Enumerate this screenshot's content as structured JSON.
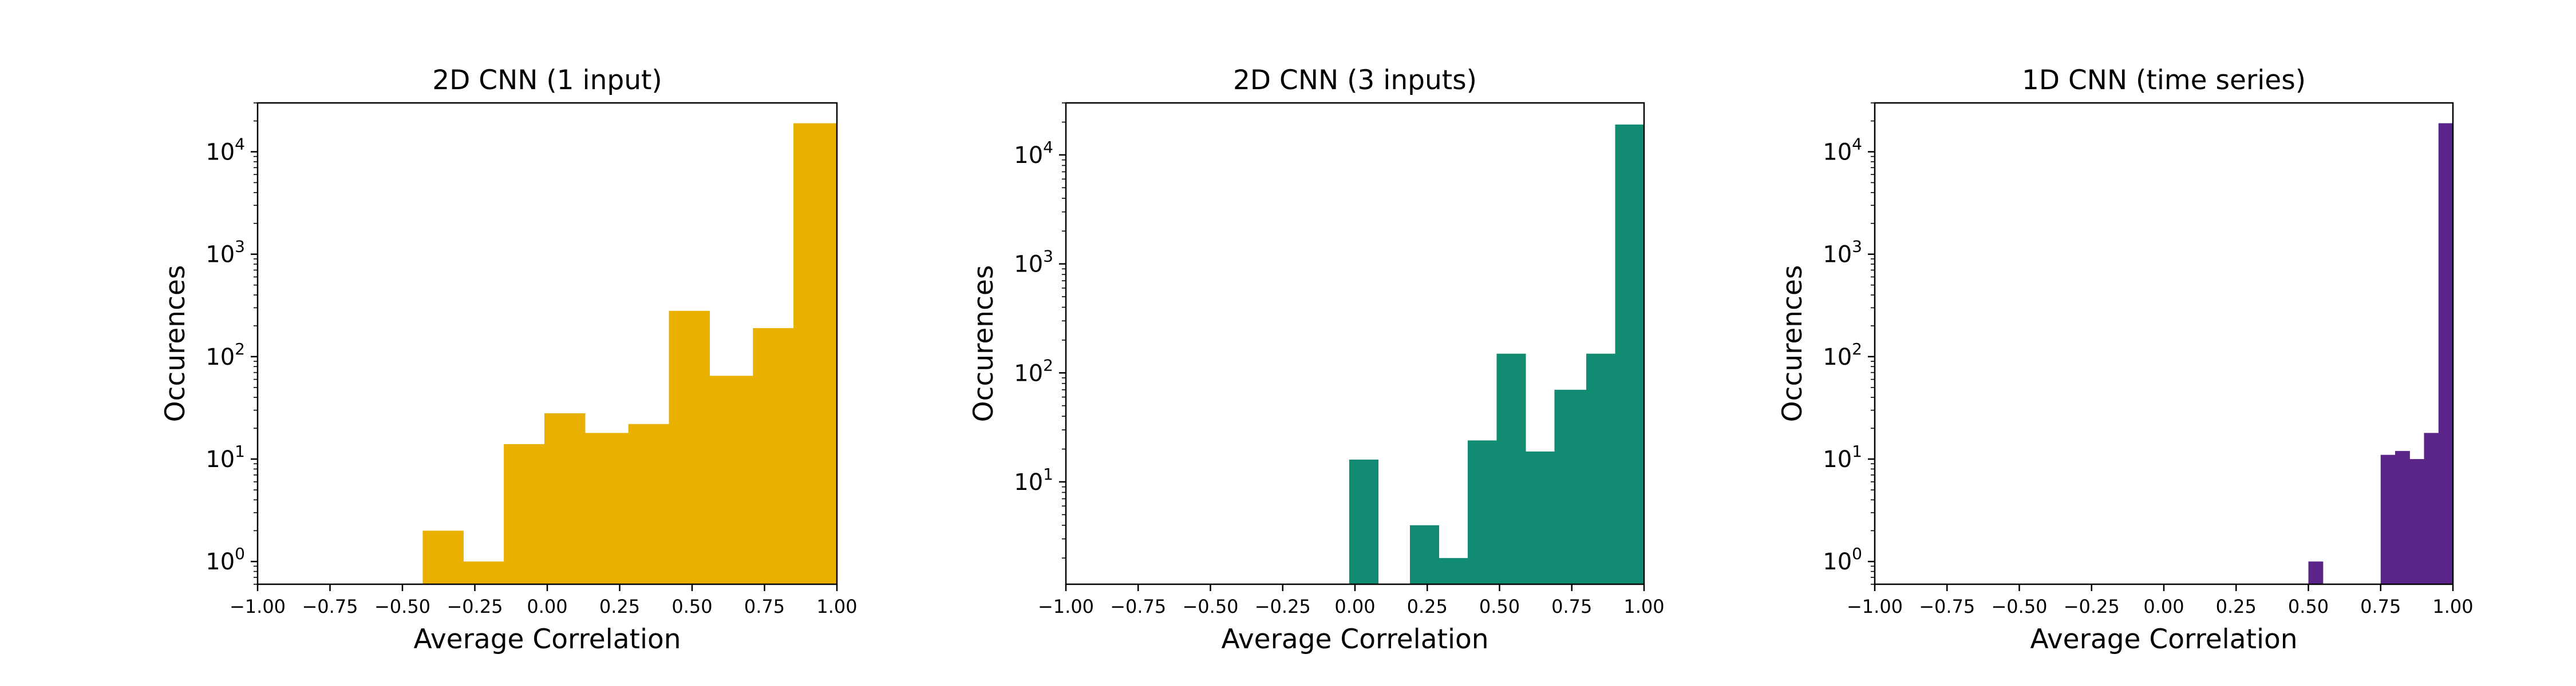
{
  "chart_data": [
    {
      "type": "histogram",
      "title": "2D CNN (1 input)",
      "xlabel": "Average Correlation",
      "ylabel": "Occurences",
      "yscale": "log",
      "xlim": [
        -1.0,
        1.0
      ],
      "ylim": [
        0.6,
        30000
      ],
      "x_ticks": [
        "−1.00",
        "−0.75",
        "−0.50",
        "−0.25",
        "0.00",
        "0.25",
        "0.50",
        "0.75",
        "1.00"
      ],
      "x_tick_values": [
        -1.0,
        -0.75,
        -0.5,
        -0.25,
        0.0,
        0.25,
        0.5,
        0.75,
        1.0
      ],
      "y_ticks": [
        {
          "base": "10",
          "exp": "0"
        },
        {
          "base": "10",
          "exp": "1"
        },
        {
          "base": "10",
          "exp": "2"
        },
        {
          "base": "10",
          "exp": "3"
        },
        {
          "base": "10",
          "exp": "4"
        }
      ],
      "y_tick_values": [
        1,
        10,
        100,
        1000,
        10000
      ],
      "color": "#e9b000",
      "bins": [
        {
          "x0": -0.43,
          "x1": -0.29,
          "count": 2
        },
        {
          "x0": -0.29,
          "x1": -0.15,
          "count": 1
        },
        {
          "x0": -0.15,
          "x1": -0.01,
          "count": 14
        },
        {
          "x0": -0.01,
          "x1": 0.13,
          "count": 28
        },
        {
          "x0": 0.13,
          "x1": 0.28,
          "count": 18
        },
        {
          "x0": 0.28,
          "x1": 0.42,
          "count": 22
        },
        {
          "x0": 0.42,
          "x1": 0.56,
          "count": 280
        },
        {
          "x0": 0.56,
          "x1": 0.71,
          "count": 65
        },
        {
          "x0": 0.71,
          "x1": 0.85,
          "count": 190
        },
        {
          "x0": 0.85,
          "x1": 1.0,
          "count": 19000
        }
      ]
    },
    {
      "type": "histogram",
      "title": "2D CNN (3 inputs)",
      "xlabel": "Average Correlation",
      "ylabel": "Occurences",
      "yscale": "log",
      "xlim": [
        -1.0,
        1.0
      ],
      "ylim": [
        1.15,
        30000
      ],
      "x_ticks": [
        "−1.00",
        "−0.75",
        "−0.50",
        "−0.25",
        "0.00",
        "0.25",
        "0.50",
        "0.75",
        "1.00"
      ],
      "x_tick_values": [
        -1.0,
        -0.75,
        -0.5,
        -0.25,
        0.0,
        0.25,
        0.5,
        0.75,
        1.0
      ],
      "y_ticks": [
        {
          "base": "10",
          "exp": "1"
        },
        {
          "base": "10",
          "exp": "2"
        },
        {
          "base": "10",
          "exp": "3"
        },
        {
          "base": "10",
          "exp": "4"
        }
      ],
      "y_tick_values": [
        10,
        100,
        1000,
        10000
      ],
      "color": "#118c72",
      "bins": [
        {
          "x0": -0.02,
          "x1": 0.08,
          "count": 16
        },
        {
          "x0": 0.08,
          "x1": 0.19,
          "count": 0
        },
        {
          "x0": 0.19,
          "x1": 0.29,
          "count": 4
        },
        {
          "x0": 0.29,
          "x1": 0.39,
          "count": 2
        },
        {
          "x0": 0.39,
          "x1": 0.49,
          "count": 24
        },
        {
          "x0": 0.49,
          "x1": 0.59,
          "count": 150
        },
        {
          "x0": 0.59,
          "x1": 0.69,
          "count": 19
        },
        {
          "x0": 0.69,
          "x1": 0.8,
          "count": 70
        },
        {
          "x0": 0.8,
          "x1": 0.9,
          "count": 150
        },
        {
          "x0": 0.9,
          "x1": 1.0,
          "count": 19000
        }
      ]
    },
    {
      "type": "histogram",
      "title": "1D CNN (time series)",
      "xlabel": "Average Correlation",
      "ylabel": "Occurences",
      "yscale": "log",
      "xlim": [
        -1.0,
        1.0
      ],
      "ylim": [
        0.6,
        30000
      ],
      "x_ticks": [
        "−1.00",
        "−0.75",
        "−0.50",
        "−0.25",
        "0.00",
        "0.25",
        "0.50",
        "0.75",
        "1.00"
      ],
      "x_tick_values": [
        -1.0,
        -0.75,
        -0.5,
        -0.25,
        0.0,
        0.25,
        0.5,
        0.75,
        1.0
      ],
      "y_ticks": [
        {
          "base": "10",
          "exp": "0"
        },
        {
          "base": "10",
          "exp": "1"
        },
        {
          "base": "10",
          "exp": "2"
        },
        {
          "base": "10",
          "exp": "3"
        },
        {
          "base": "10",
          "exp": "4"
        }
      ],
      "y_tick_values": [
        1,
        10,
        100,
        1000,
        10000
      ],
      "color": "#5b2489",
      "bins": [
        {
          "x0": 0.5,
          "x1": 0.55,
          "count": 1
        },
        {
          "x0": 0.75,
          "x1": 0.8,
          "count": 11
        },
        {
          "x0": 0.8,
          "x1": 0.85,
          "count": 12
        },
        {
          "x0": 0.85,
          "x1": 0.9,
          "count": 10
        },
        {
          "x0": 0.9,
          "x1": 0.95,
          "count": 18
        },
        {
          "x0": 0.95,
          "x1": 1.0,
          "count": 19000
        }
      ]
    }
  ]
}
